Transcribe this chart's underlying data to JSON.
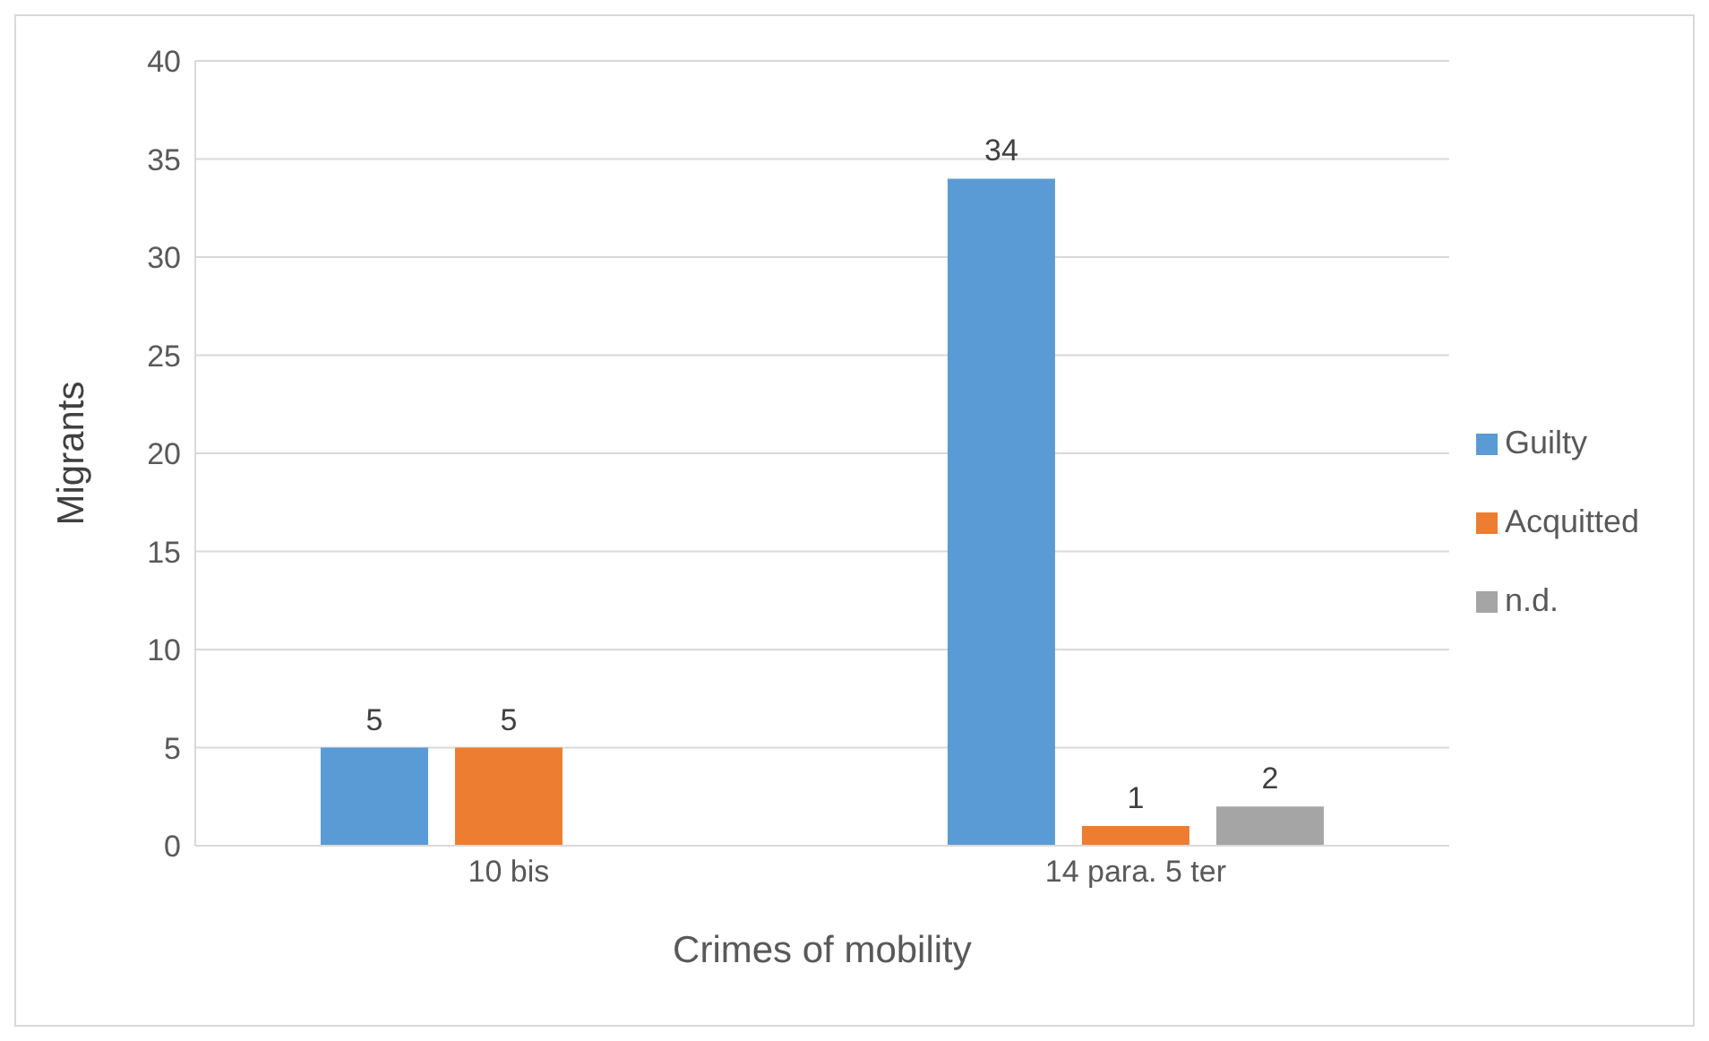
{
  "chart_data": {
    "type": "bar",
    "xlabel": "Crimes of mobility",
    "ylabel": "Migrants",
    "categories": [
      "10 bis",
      "14 para. 5 ter"
    ],
    "series": [
      {
        "name": "Guilty",
        "color": "#5b9bd5",
        "values": [
          5,
          34
        ]
      },
      {
        "name": "Acquitted",
        "color": "#ed7d31",
        "values": [
          5,
          1
        ]
      },
      {
        "name": "n.d.",
        "color": "#a5a5a5",
        "values": [
          null,
          2
        ]
      }
    ],
    "ylim": [
      0,
      40
    ],
    "yticks": [
      0,
      5,
      10,
      15,
      20,
      25,
      30,
      35,
      40
    ],
    "grid": "y",
    "legend": "right",
    "data_labels": true
  }
}
